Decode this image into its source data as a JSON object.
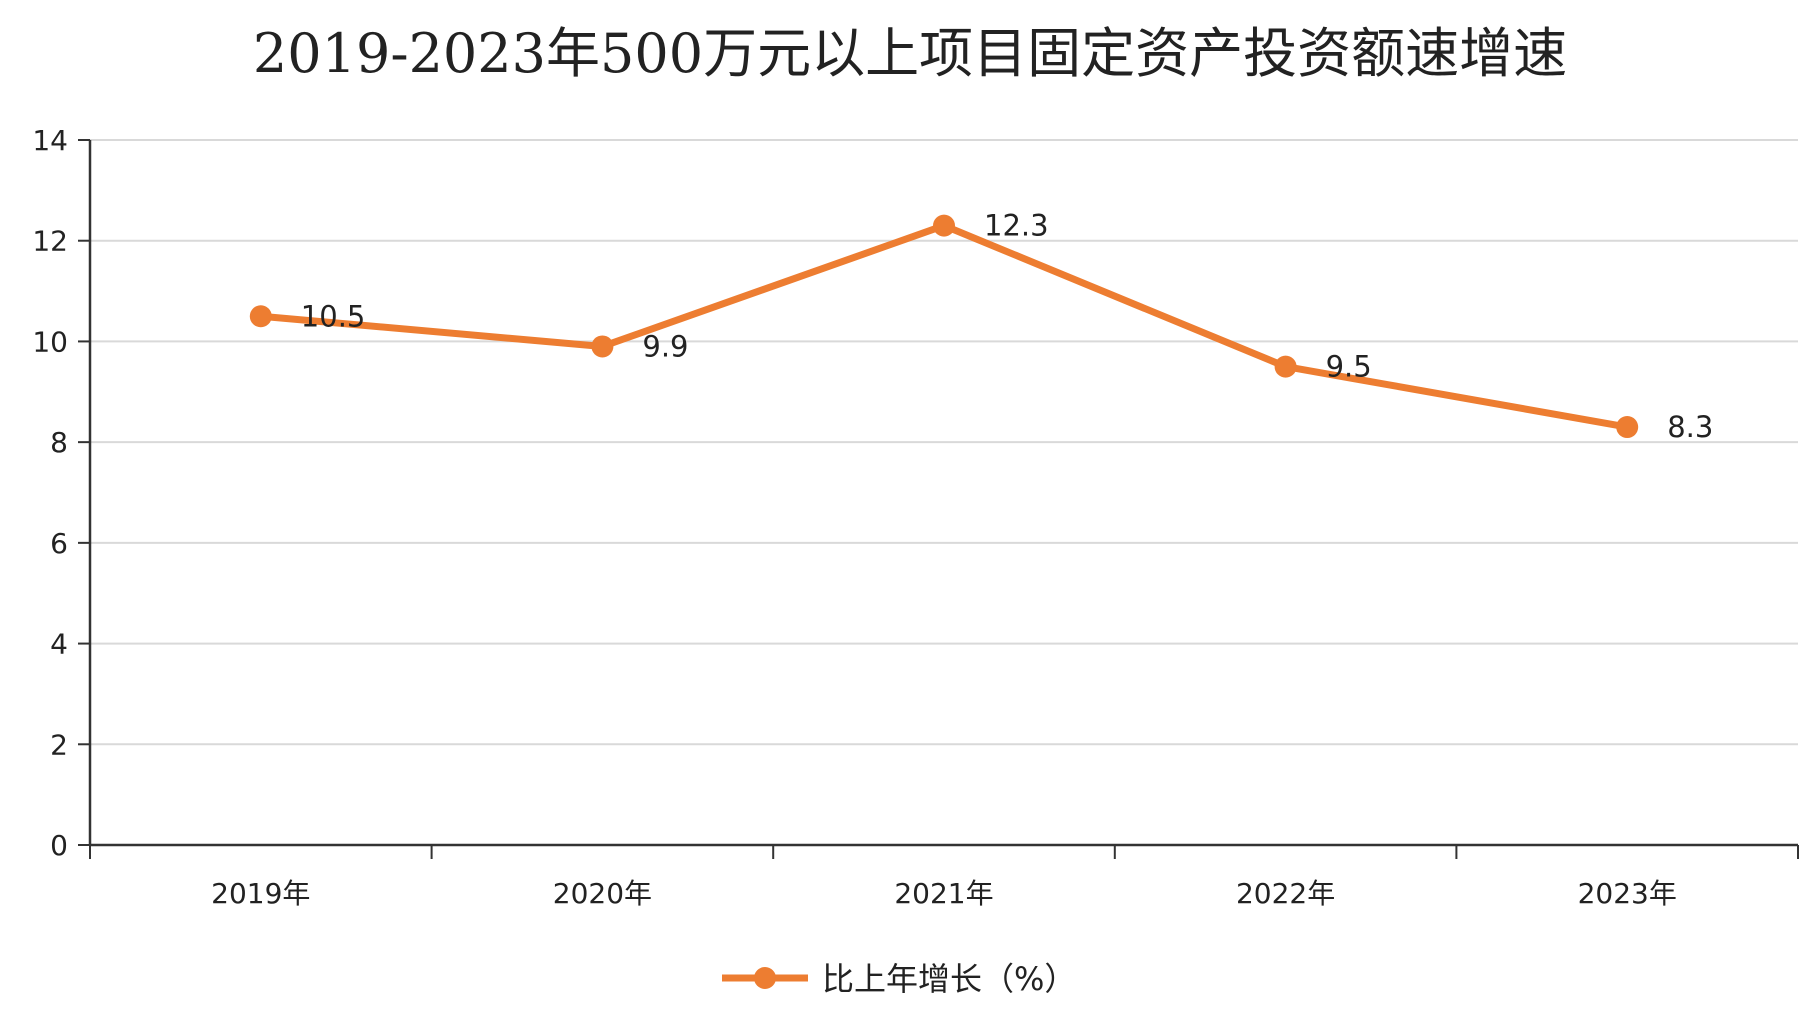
{
  "chart_data": {
    "type": "line",
    "title": "2019-2023年500万元以上项目固定资产投资额速增速",
    "categories": [
      "2019年",
      "2020年",
      "2021年",
      "2022年",
      "2023年"
    ],
    "series": [
      {
        "name": "比上年增长（%）",
        "values": [
          10.5,
          9.9,
          12.3,
          9.5,
          8.3
        ],
        "color": "#ED7D31"
      }
    ],
    "data_labels": [
      "10.5",
      "9.9",
      "12.3",
      "9.5",
      "8.3"
    ],
    "ylim": [
      0,
      14
    ],
    "yticks": [
      0,
      2,
      4,
      6,
      8,
      10,
      12,
      14
    ],
    "ytick_labels": [
      "0",
      "2",
      "4",
      "6",
      "8",
      "10",
      "12",
      "14"
    ],
    "grid": true,
    "legend_position": "bottom",
    "xlabel": "",
    "ylabel": ""
  }
}
